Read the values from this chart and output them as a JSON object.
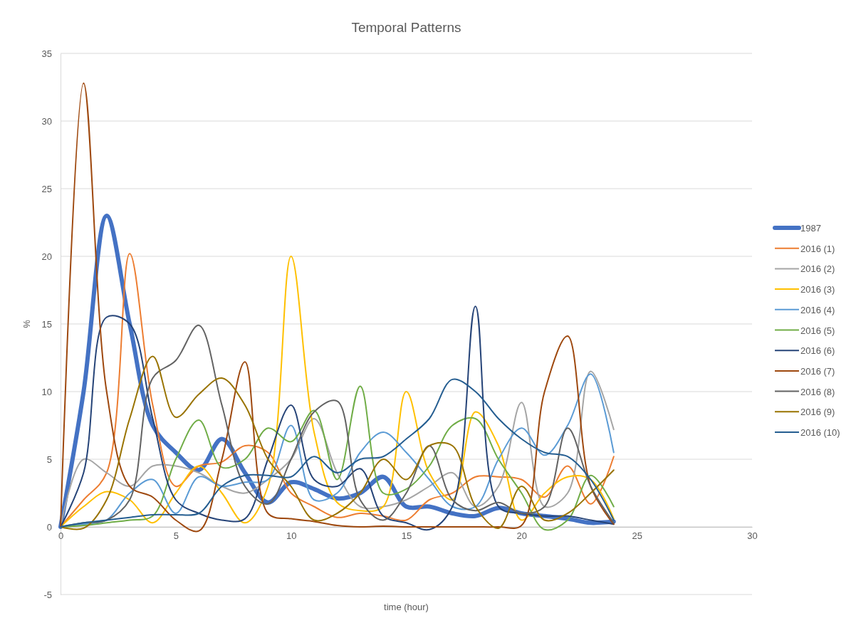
{
  "chart_data": {
    "type": "line",
    "title": "Temporal Patterns",
    "xlabel": "time (hour)",
    "ylabel": "%",
    "x": [
      0,
      1,
      2,
      3,
      4,
      5,
      6,
      7,
      8,
      9,
      10,
      11,
      12,
      13,
      14,
      15,
      16,
      17,
      18,
      19,
      20,
      21,
      22,
      23,
      24
    ],
    "xlim": [
      0,
      30
    ],
    "xticks": [
      0,
      5,
      10,
      15,
      20,
      25,
      30
    ],
    "ylim": [
      -5,
      35
    ],
    "yticks": [
      -5,
      0,
      5,
      10,
      15,
      20,
      25,
      30,
      35
    ],
    "grid": "y",
    "legend": "right",
    "marker": "none",
    "line_style": "solid",
    "series": [
      {
        "name": "1987",
        "color": "#4472c4",
        "values": [
          0,
          10,
          23,
          15,
          7.5,
          5.5,
          4.2,
          6.5,
          4,
          1.8,
          3.3,
          2.8,
          2.1,
          2.5,
          3.7,
          1.5,
          1.5,
          1,
          0.8,
          1.4,
          1,
          0.8,
          0.6,
          0.3,
          0.4
        ]
      },
      {
        "name": "2016 (1)",
        "color": "#ed7d31",
        "values": [
          0,
          2,
          4,
          20.2,
          9,
          3,
          4.5,
          4.8,
          6,
          5.5,
          2.5,
          1.5,
          0.7,
          1,
          0.8,
          0.5,
          2,
          2.5,
          3.7,
          3.7,
          3.5,
          2.2,
          4.5,
          1.7,
          5.2
        ]
      },
      {
        "name": "2016 (2)",
        "color": "#a5a5a5",
        "values": [
          0,
          5,
          4,
          3,
          4.5,
          4.5,
          4,
          3,
          2.5,
          3.5,
          5,
          8,
          4,
          1.5,
          1.5,
          2,
          3,
          4,
          1.5,
          3,
          9.2,
          1.5,
          2.5,
          11.5,
          7.2
        ]
      },
      {
        "name": "2016 (3)",
        "color": "#ffc000",
        "values": [
          0,
          1.5,
          2.6,
          2,
          0.3,
          2.5,
          4.5,
          2.5,
          0.3,
          3,
          20,
          7,
          1.8,
          1.2,
          1.5,
          10,
          4,
          2,
          8.5,
          6,
          0.5,
          2.5,
          3.7,
          3.5,
          0.6
        ]
      },
      {
        "name": "2016 (4)",
        "color": "#5b9bd5",
        "values": [
          0,
          0.2,
          0.5,
          2.5,
          3.5,
          1,
          3.7,
          3,
          3.3,
          3.5,
          7.5,
          2,
          2.5,
          5.5,
          7,
          5.5,
          3.5,
          1.5,
          1.5,
          5,
          7.3,
          5.3,
          7.5,
          11.3,
          5.5
        ]
      },
      {
        "name": "2016 (5)",
        "color": "#70ad47",
        "values": [
          0,
          0.1,
          0.3,
          0.5,
          0.8,
          5,
          7.9,
          4.4,
          5,
          7.3,
          6.3,
          8.6,
          3.5,
          10.4,
          2.5,
          2.8,
          4.5,
          7.5,
          8,
          5,
          2.5,
          -0.2,
          0.5,
          3.8,
          1.5
        ]
      },
      {
        "name": "2016 (6)",
        "color": "#264478",
        "values": [
          0,
          4,
          15.5,
          15,
          8,
          2,
          1,
          0.5,
          0.6,
          5,
          9,
          3.5,
          3,
          4.3,
          0.8,
          0.3,
          -0.2,
          1.5,
          16.3,
          1.5,
          1,
          0.8,
          0.8,
          0.5,
          0.2
        ]
      },
      {
        "name": "2016 (7)",
        "color": "#9e480e",
        "values": [
          0,
          32.8,
          10,
          3,
          2.2,
          0.5,
          -0.3,
          5,
          12.2,
          1,
          0.6,
          0.4,
          0.1,
          0,
          0.05,
          0,
          0,
          0,
          0,
          0,
          0.1,
          10,
          14.1,
          3,
          0.2
        ]
      },
      {
        "name": "2016 (8)",
        "color": "#636363",
        "values": [
          0,
          0.3,
          0.5,
          2,
          11,
          12.3,
          14.9,
          9,
          3,
          1.7,
          5,
          8.5,
          9.3,
          2,
          0.5,
          2.5,
          6,
          2,
          1.2,
          1.8,
          1,
          1.5,
          7.3,
          3,
          0.3
        ]
      },
      {
        "name": "2016 (9)",
        "color": "#997300",
        "values": [
          0,
          -0.1,
          2,
          8,
          12.6,
          8.1,
          9.8,
          11,
          9,
          5,
          3,
          0.5,
          1,
          2.5,
          5,
          3.5,
          6,
          6,
          1.5,
          -0.1,
          3,
          0.5,
          1,
          2.5,
          4.2
        ]
      },
      {
        "name": "2016 (10)",
        "color": "#255e91",
        "values": [
          0,
          0.3,
          0.5,
          0.7,
          0.9,
          0.9,
          1,
          3,
          3.8,
          3.8,
          3.7,
          5.2,
          4,
          5,
          5.2,
          6.5,
          8,
          10.9,
          10,
          8,
          6.5,
          5.5,
          5.2,
          3.5,
          0.5
        ]
      }
    ]
  }
}
